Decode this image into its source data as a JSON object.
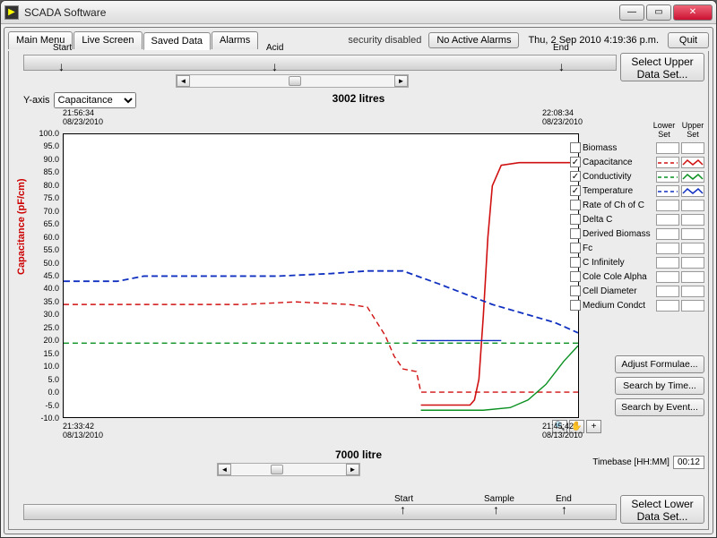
{
  "window": {
    "title": "SCADA Software"
  },
  "tabs": [
    "Main Menu",
    "Live Screen",
    "Saved Data",
    "Alarms"
  ],
  "active_tab": 2,
  "security": "security disabled",
  "alarm_btn": "No Active Alarms",
  "datetime": "Thu, 2 Sep 2010  4:19:36 p.m.",
  "quit": "Quit",
  "upper_btn": "Select Upper\nData Set...",
  "lower_btn": "Select Lower\nData Set...",
  "top_markers": {
    "start": "Start",
    "acid": "Acid",
    "end": "End"
  },
  "bot_markers": {
    "start": "Start",
    "sample": "Sample",
    "end": "End"
  },
  "yaxis_label": "Y-axis",
  "yaxis_options": [
    "Capacitance"
  ],
  "upper_title": "3002 litres",
  "lower_title": "7000 litre",
  "upper_ts_left": "21:56:34\n08/23/2010",
  "upper_ts_right": "22:08:34\n08/23/2010",
  "lower_ts_left": "21:33:42\n08/13/2010",
  "lower_ts_right": "21:45:42\n08/13/2010",
  "y_rot_label": "Capacitance (pF/cm)",
  "y_rot_color": "#c00000",
  "chart": {
    "ylim": [
      -10,
      100
    ],
    "ytick_step": 5,
    "grid_color": "#e0e0e0",
    "background": "#ffffff",
    "series": {
      "capacitance_lower": {
        "color": "#d01010",
        "dash": "6,4",
        "width": 1.4,
        "points": [
          [
            0,
            34
          ],
          [
            60,
            34
          ],
          [
            120,
            34
          ],
          [
            200,
            34
          ],
          [
            260,
            35
          ],
          [
            320,
            34
          ],
          [
            340,
            33
          ],
          [
            360,
            22
          ],
          [
            370,
            14
          ],
          [
            380,
            9
          ],
          [
            395,
            8
          ],
          [
            400,
            0
          ],
          [
            420,
            0
          ],
          [
            480,
            0
          ],
          [
            560,
            0
          ],
          [
            576,
            0
          ]
        ]
      },
      "capacitance_upper": {
        "color": "#d01010",
        "dash": "",
        "width": 1.6,
        "points": [
          [
            400,
            -5
          ],
          [
            430,
            -5
          ],
          [
            455,
            -5
          ],
          [
            460,
            -3
          ],
          [
            465,
            5
          ],
          [
            470,
            30
          ],
          [
            475,
            60
          ],
          [
            480,
            80
          ],
          [
            490,
            88
          ],
          [
            510,
            89
          ],
          [
            576,
            89
          ]
        ]
      },
      "conductivity_lower": {
        "color": "#0a9020",
        "dash": "6,4",
        "width": 1.4,
        "points": [
          [
            0,
            19
          ],
          [
            200,
            19
          ],
          [
            380,
            19
          ],
          [
            500,
            19
          ],
          [
            576,
            19
          ]
        ]
      },
      "conductivity_upper": {
        "color": "#0a9020",
        "dash": "",
        "width": 1.4,
        "points": [
          [
            400,
            -7
          ],
          [
            470,
            -7
          ],
          [
            500,
            -6
          ],
          [
            520,
            -3
          ],
          [
            540,
            3
          ],
          [
            560,
            12
          ],
          [
            576,
            18
          ]
        ]
      },
      "temperature_lower": {
        "color": "#1030c0",
        "dash": "7,4",
        "width": 1.8,
        "points": [
          [
            0,
            43
          ],
          [
            60,
            43
          ],
          [
            90,
            45
          ],
          [
            160,
            45
          ],
          [
            240,
            45
          ],
          [
            300,
            46
          ],
          [
            340,
            47
          ],
          [
            380,
            47
          ],
          [
            420,
            42
          ],
          [
            450,
            38
          ],
          [
            480,
            34
          ],
          [
            520,
            30
          ],
          [
            550,
            27
          ],
          [
            576,
            23
          ]
        ]
      },
      "temperature_upper_frag": {
        "color": "#1030c0",
        "dash": "",
        "width": 1.4,
        "points": [
          [
            395,
            20
          ],
          [
            420,
            20
          ],
          [
            450,
            20
          ],
          [
            490,
            20
          ]
        ]
      }
    }
  },
  "legend": {
    "header_lower": "Lower Set",
    "header_upper": "Upper Set",
    "items": [
      {
        "name": "Biomass",
        "checked": false,
        "lower": "",
        "upper": ""
      },
      {
        "name": "Capacitance",
        "checked": true,
        "lower": "#d01010",
        "lower_dash": true,
        "upper": "#d01010"
      },
      {
        "name": "Conductivity",
        "checked": true,
        "lower": "#0a9020",
        "lower_dash": true,
        "upper": "#0a9020"
      },
      {
        "name": "Temperature",
        "checked": true,
        "lower": "#1030c0",
        "lower_dash": true,
        "upper": "#1030c0"
      },
      {
        "name": "Rate of Ch of C",
        "checked": false
      },
      {
        "name": "Delta C",
        "checked": false
      },
      {
        "name": "Derived Biomass",
        "checked": false
      },
      {
        "name": "Fc",
        "checked": false
      },
      {
        "name": "C Infinitely",
        "checked": false
      },
      {
        "name": "Cole Cole Alpha",
        "checked": false
      },
      {
        "name": "Cell Diameter",
        "checked": false
      },
      {
        "name": "Medium Condct",
        "checked": false
      }
    ]
  },
  "side_buttons": [
    "Adjust Formulae...",
    "Search by Time...",
    "Search by Event..."
  ],
  "timebase_label": "Timebase [HH:MM]",
  "timebase_value": "00:12",
  "plot_tools": [
    "🔍",
    "✋",
    "+"
  ]
}
